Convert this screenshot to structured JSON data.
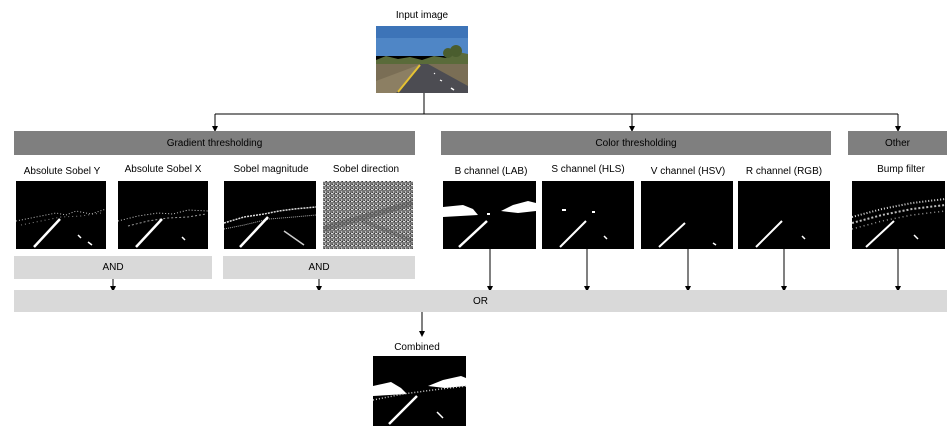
{
  "input": {
    "label": "Input image"
  },
  "groups": {
    "gradient": "Gradient thresholding",
    "color": "Color thresholding",
    "other": "Other"
  },
  "filters": {
    "abs_sobel_y": "Absolute Sobel Y",
    "abs_sobel_x": "Absolute Sobel X",
    "sobel_mag": "Sobel magnitude",
    "sobel_dir": "Sobel direction",
    "b_channel": "B channel (LAB)",
    "s_channel": "S channel (HLS)",
    "v_channel": "V channel (HSV)",
    "r_channel": "R channel (RGB)",
    "bump": "Bump filter"
  },
  "ops": {
    "and1": "AND",
    "and2": "AND",
    "or": "OR"
  },
  "output": {
    "label": "Combined"
  }
}
